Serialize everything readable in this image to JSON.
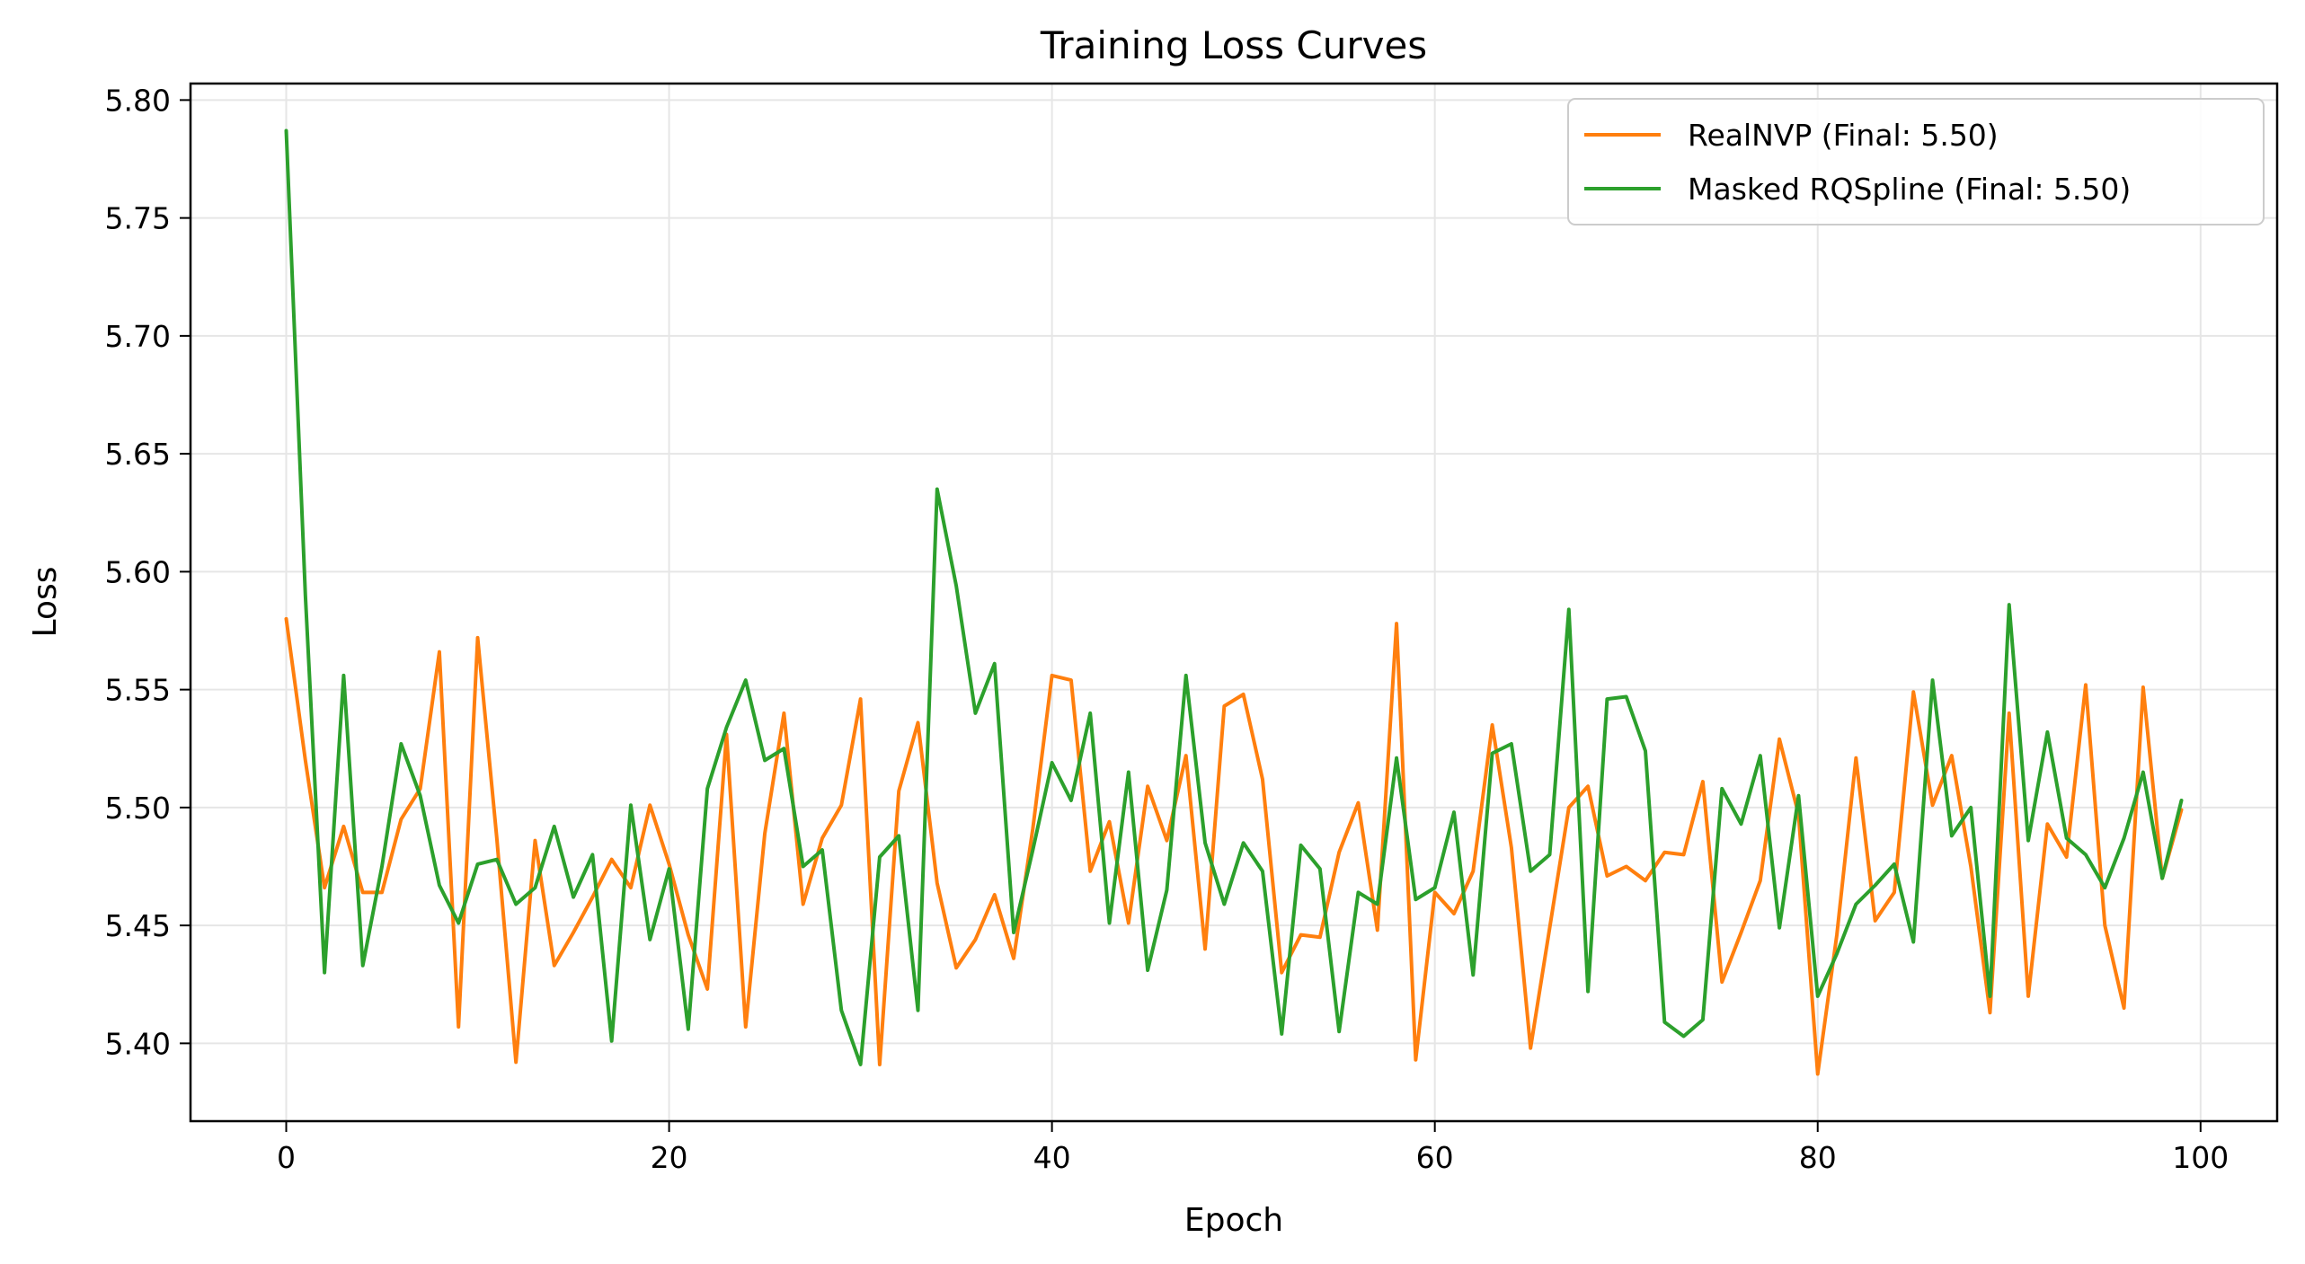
{
  "chart_data": {
    "type": "line",
    "title": "Training Loss Curves",
    "xlabel": "Epoch",
    "ylabel": "Loss",
    "xlim": [
      -5,
      104
    ],
    "ylim": [
      5.367,
      5.807
    ],
    "xticks": [
      0,
      20,
      40,
      60,
      80,
      100
    ],
    "yticks": [
      5.4,
      5.45,
      5.5,
      5.55,
      5.6,
      5.65,
      5.7,
      5.75,
      5.8
    ],
    "grid": true,
    "legend_position": "top-right",
    "colors": {
      "realnvp": "#ff7f0e",
      "rqspline": "#2ca02c"
    },
    "series": [
      {
        "name": "RealNVP (Final: 5.50)",
        "color": "#ff7f0e",
        "values": [
          5.58,
          5.52,
          5.466,
          5.492,
          5.464,
          5.464,
          5.495,
          5.508,
          5.566,
          5.407,
          5.572,
          5.487,
          5.392,
          5.486,
          5.433,
          5.447,
          5.462,
          5.478,
          5.466,
          5.501,
          5.476,
          5.446,
          5.423,
          5.531,
          5.407,
          5.489,
          5.54,
          5.459,
          5.487,
          5.501,
          5.546,
          5.391,
          5.507,
          5.536,
          5.468,
          5.432,
          5.444,
          5.463,
          5.436,
          5.491,
          5.556,
          5.554,
          5.473,
          5.494,
          5.451,
          5.509,
          5.486,
          5.522,
          5.44,
          5.543,
          5.548,
          5.512,
          5.43,
          5.446,
          5.445,
          5.481,
          5.502,
          5.448,
          5.578,
          5.393,
          5.464,
          5.455,
          5.473,
          5.535,
          5.483,
          5.398,
          5.449,
          5.5,
          5.509,
          5.471,
          5.475,
          5.469,
          5.481,
          5.48,
          5.511,
          5.426,
          5.447,
          5.469,
          5.529,
          5.497,
          5.387,
          5.446,
          5.521,
          5.452,
          5.464,
          5.549,
          5.501,
          5.522,
          5.475,
          5.413,
          5.54,
          5.42,
          5.493,
          5.479,
          5.552,
          5.45,
          5.415,
          5.551,
          5.47,
          5.499
        ]
      },
      {
        "name": "Masked RQSpline (Final: 5.50)",
        "color": "#2ca02c",
        "values": [
          5.787,
          5.59,
          5.43,
          5.556,
          5.433,
          5.475,
          5.527,
          5.505,
          5.467,
          5.451,
          5.476,
          5.478,
          5.459,
          5.466,
          5.492,
          5.462,
          5.48,
          5.401,
          5.501,
          5.444,
          5.474,
          5.406,
          5.508,
          5.534,
          5.554,
          5.52,
          5.525,
          5.475,
          5.482,
          5.414,
          5.391,
          5.479,
          5.488,
          5.414,
          5.635,
          5.594,
          5.54,
          5.561,
          5.447,
          5.482,
          5.519,
          5.503,
          5.54,
          5.451,
          5.515,
          5.431,
          5.465,
          5.556,
          5.485,
          5.459,
          5.485,
          5.473,
          5.404,
          5.484,
          5.474,
          5.405,
          5.464,
          5.459,
          5.521,
          5.461,
          5.466,
          5.498,
          5.429,
          5.523,
          5.527,
          5.473,
          5.48,
          5.584,
          5.422,
          5.546,
          5.547,
          5.524,
          5.409,
          5.403,
          5.41,
          5.508,
          5.493,
          5.522,
          5.449,
          5.505,
          5.42,
          5.438,
          5.459,
          5.467,
          5.476,
          5.443,
          5.554,
          5.488,
          5.5,
          5.42,
          5.586,
          5.486,
          5.532,
          5.487,
          5.48,
          5.466,
          5.487,
          5.515,
          5.47,
          5.503
        ]
      }
    ]
  }
}
